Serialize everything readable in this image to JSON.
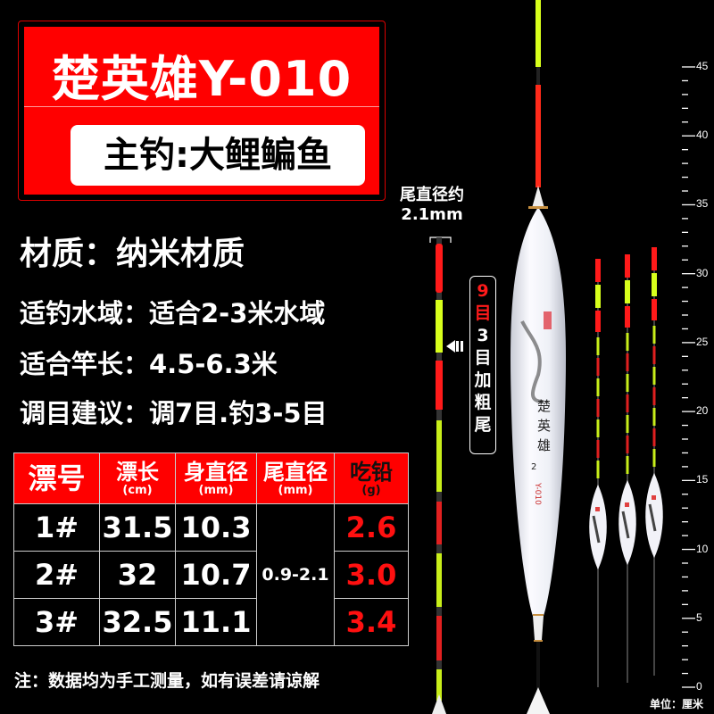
{
  "title": "楚英雄Y-010",
  "subtitle": "主钓:大鲤鳊鱼",
  "specs": [
    "材质：纳米材质",
    "适钓水域：适合2-3米水域",
    "适合竿长：4.5-6.3米",
    "调目建议：调7目.钓3-5目"
  ],
  "table": {
    "headers": [
      {
        "label": "漂号",
        "unit": ""
      },
      {
        "label": "漂长",
        "unit": "(cm)"
      },
      {
        "label": "身直径",
        "unit": "(mm)"
      },
      {
        "label": "尾直径",
        "unit": "(mm)"
      },
      {
        "label": "吃铅",
        "unit": "(g)"
      }
    ],
    "rows": [
      {
        "no": "1#",
        "length": "31.5",
        "body": "10.3",
        "lead": "2.6"
      },
      {
        "no": "2#",
        "length": "32",
        "body": "10.7",
        "lead": "3.0"
      },
      {
        "no": "3#",
        "length": "32.5",
        "body": "11.1",
        "lead": "3.4"
      }
    ],
    "tail_diameter": "0.9-2.1"
  },
  "note": "注：数据均为手工测量，如有误差请谅解",
  "tail_label": {
    "line1": "尾直径约",
    "line2": "2.1mm"
  },
  "badge": {
    "red1": "9",
    "red2": "目",
    "rest": [
      "3",
      "目",
      "加",
      "粗",
      "尾"
    ]
  },
  "ruler": {
    "min": 0,
    "max": 45,
    "labels": [
      "0",
      "5",
      "10",
      "15",
      "20",
      "25",
      "30",
      "35",
      "40",
      "45"
    ],
    "unit": "单位：厘米"
  },
  "colors": {
    "red": "#ff0000",
    "yellow_green": "#d8ff1c",
    "white": "#ffffff"
  }
}
